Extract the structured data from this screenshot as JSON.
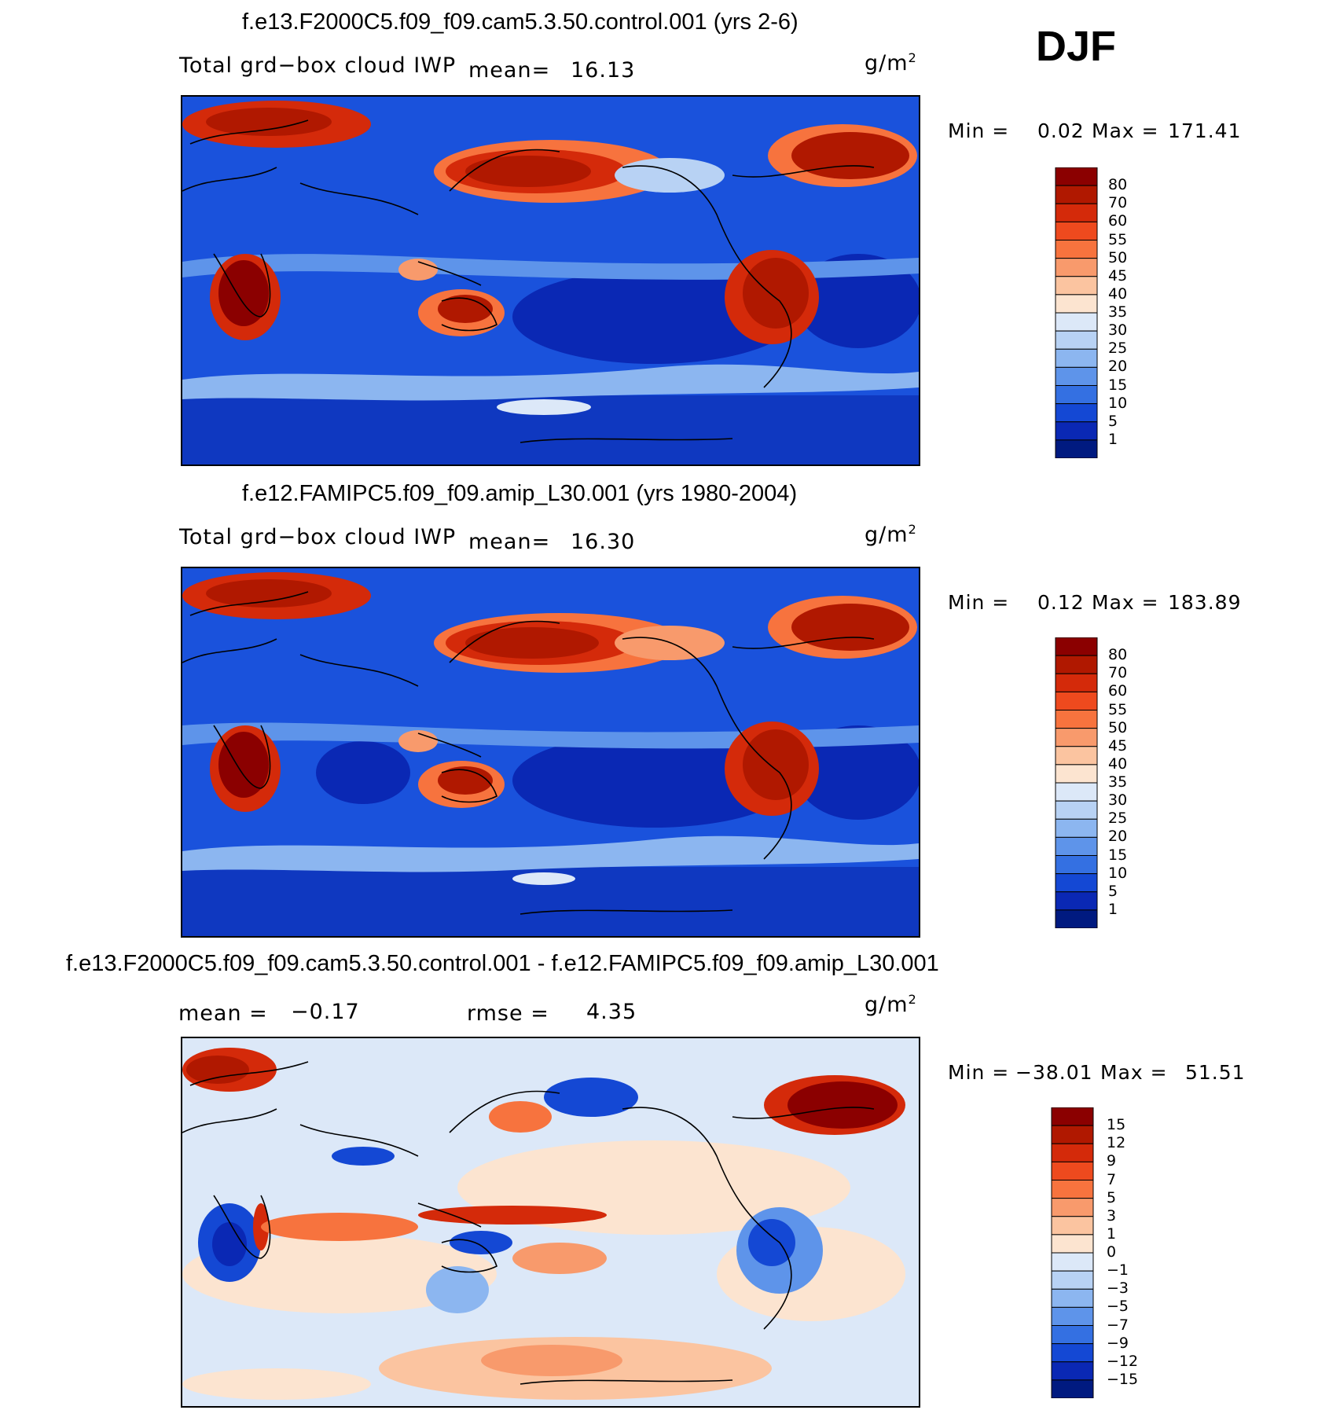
{
  "season": "DJF",
  "panels": [
    {
      "title": "f.e13.F2000C5.f09_f09.cam5.3.50.control.001 (yrs 2-6)",
      "variable": "Total grd−box cloud IWP",
      "stat1_label": "mean=",
      "stat1_value": "16.13",
      "stat2_label": "",
      "stat2_value": "",
      "units": "g/m",
      "units_sup": "2",
      "min_label": "Min =",
      "min_value": "0.02",
      "max_label": "Max =",
      "max_value": "171.41"
    },
    {
      "title": "f.e12.FAMIPC5.f09_f09.amip_L30.001 (yrs 1980-2004)",
      "variable": "Total grd−box cloud IWP",
      "stat1_label": "mean=",
      "stat1_value": "16.30",
      "stat2_label": "",
      "stat2_value": "",
      "units": "g/m",
      "units_sup": "2",
      "min_label": "Min =",
      "min_value": "0.12",
      "max_label": "Max =",
      "max_value": "183.89"
    },
    {
      "title": "f.e13.F2000C5.f09_f09.cam5.3.50.control.001 - f.e12.FAMIPC5.f09_f09.amip_L30.001",
      "variable": "",
      "stat1_label": "mean =",
      "stat1_value": "−0.17",
      "stat2_label": "rmse =",
      "stat2_value": "4.35",
      "units": "g/m",
      "units_sup": "2",
      "min_label": "Min =",
      "min_value": "−38.01",
      "max_label": "Max =",
      "max_value": "51.51"
    }
  ],
  "chart_data": [
    {
      "type": "heatmap",
      "title": "f.e13.F2000C5.f09_f09.cam5.3.50.control.001 (yrs 2-6)",
      "field": "Total grd−box cloud IWP",
      "units": "g/m2",
      "mean": 16.13,
      "min": 0.02,
      "max": 171.41,
      "colorbar_levels": [
        "80",
        "70",
        "60",
        "55",
        "50",
        "45",
        "40",
        "35",
        "30",
        "25",
        "20",
        "15",
        "10",
        "5",
        "1"
      ],
      "colorbar_colors": [
        "#8b0000",
        "#b01800",
        "#d42a0a",
        "#ee4a1e",
        "#f7733e",
        "#f89a6c",
        "#fbc4a0",
        "#fce4d0",
        "#dce8f8",
        "#b8d2f4",
        "#8cb6f0",
        "#5e94ea",
        "#3470e2",
        "#1448d4",
        "#0a28b4",
        "#001a80"
      ]
    },
    {
      "type": "heatmap",
      "title": "f.e12.FAMIPC5.f09_f09.amip_L30.001 (yrs 1980-2004)",
      "field": "Total grd−box cloud IWP",
      "units": "g/m2",
      "mean": 16.3,
      "min": 0.12,
      "max": 183.89,
      "colorbar_levels": [
        "80",
        "70",
        "60",
        "55",
        "50",
        "45",
        "40",
        "35",
        "30",
        "25",
        "20",
        "15",
        "10",
        "5",
        "1"
      ],
      "colorbar_colors": [
        "#8b0000",
        "#b01800",
        "#d42a0a",
        "#ee4a1e",
        "#f7733e",
        "#f89a6c",
        "#fbc4a0",
        "#fce4d0",
        "#dce8f8",
        "#b8d2f4",
        "#8cb6f0",
        "#5e94ea",
        "#3470e2",
        "#1448d4",
        "#0a28b4",
        "#001a80"
      ]
    },
    {
      "type": "heatmap",
      "title": "f.e13.F2000C5.f09_f09.cam5.3.50.control.001 - f.e12.FAMIPC5.f09_f09.amip_L30.001",
      "units": "g/m2",
      "mean": -0.17,
      "rmse": 4.35,
      "min": -38.01,
      "max": 51.51,
      "colorbar_levels": [
        "15",
        "12",
        "9",
        "7",
        "5",
        "3",
        "1",
        "0",
        "−1",
        "−3",
        "−5",
        "−7",
        "−9",
        "−12",
        "−15"
      ],
      "colorbar_colors": [
        "#8b0000",
        "#b01800",
        "#d42a0a",
        "#ee4a1e",
        "#f7733e",
        "#f89a6c",
        "#fbc4a0",
        "#fce4d0",
        "#dce8f8",
        "#b8d2f4",
        "#8cb6f0",
        "#5e94ea",
        "#3470e2",
        "#1448d4",
        "#0a28b4",
        "#001a80"
      ]
    }
  ]
}
